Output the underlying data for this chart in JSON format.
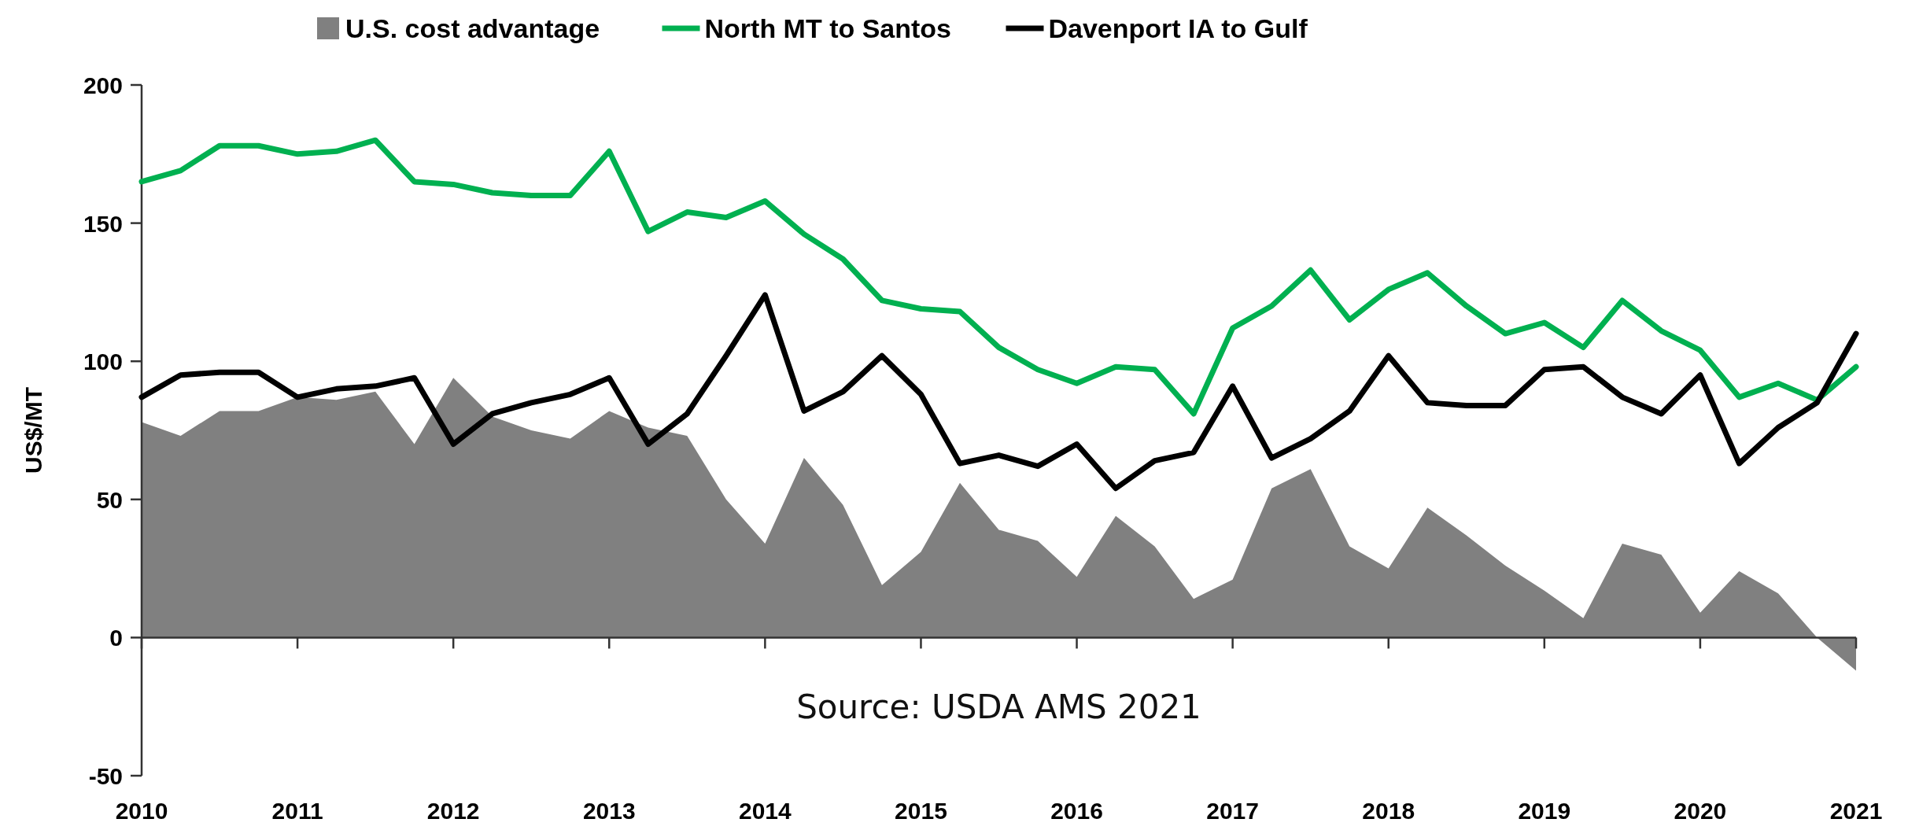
{
  "chart_data": {
    "type": "line",
    "ylabel": "US$/MT",
    "x": [
      2010,
      2010.25,
      2010.5,
      2010.75,
      2011,
      2011.25,
      2011.5,
      2011.75,
      2012,
      2012.25,
      2012.5,
      2012.75,
      2013,
      2013.25,
      2013.5,
      2013.75,
      2014,
      2014.25,
      2014.5,
      2014.75,
      2015,
      2015.25,
      2015.5,
      2015.75,
      2016,
      2016.25,
      2016.5,
      2016.75,
      2017,
      2017.25,
      2017.5,
      2017.75,
      2018,
      2018.25,
      2018.5,
      2018.75,
      2019,
      2019.25,
      2019.5,
      2019.75,
      2020,
      2020.25,
      2020.5,
      2020.75,
      2021
    ],
    "series": [
      {
        "name": "U.S. cost advantage",
        "type": "area",
        "color": "#808080",
        "values": [
          78,
          73,
          82,
          82,
          87,
          86,
          89,
          70,
          94,
          80,
          75,
          72,
          82,
          76,
          73,
          50,
          34,
          65,
          48,
          19,
          31,
          56,
          39,
          35,
          22,
          44,
          33,
          14,
          21,
          54,
          61,
          33,
          25,
          47,
          37,
          26,
          17,
          7,
          34,
          30,
          9,
          24,
          16,
          0,
          -12
        ]
      },
      {
        "name": "North MT to Santos",
        "color": "#00b050",
        "values": [
          165,
          169,
          178,
          178,
          175,
          176,
          180,
          165,
          164,
          161,
          160,
          160,
          176,
          147,
          154,
          152,
          158,
          146,
          137,
          122,
          119,
          118,
          105,
          97,
          92,
          98,
          97,
          81,
          112,
          120,
          133,
          115,
          126,
          132,
          120,
          110,
          114,
          105,
          122,
          111,
          104,
          87,
          92,
          86,
          98
        ]
      },
      {
        "name": "Davenport IA to Gulf",
        "color": "#000000",
        "values": [
          87,
          95,
          96,
          96,
          87,
          90,
          91,
          94,
          70,
          81,
          85,
          88,
          94,
          70,
          81,
          102,
          124,
          82,
          89,
          102,
          88,
          63,
          66,
          62,
          70,
          54,
          64,
          67,
          91,
          65,
          72,
          82,
          102,
          85,
          84,
          84,
          97,
          98,
          87,
          81,
          95,
          63,
          76,
          85,
          110
        ]
      }
    ],
    "xlim": [
      2010,
      2021
    ],
    "xticks": [
      2010,
      2011,
      2012,
      2013,
      2014,
      2015,
      2016,
      2017,
      2018,
      2019,
      2020,
      2021
    ],
    "ylim": [
      -50,
      200
    ],
    "yticks": [
      -50,
      0,
      50,
      100,
      150,
      200
    ],
    "annotations": [
      "Source: USDA AMS 2021"
    ],
    "legend": "top",
    "marker": "none",
    "line_style": "solid"
  }
}
